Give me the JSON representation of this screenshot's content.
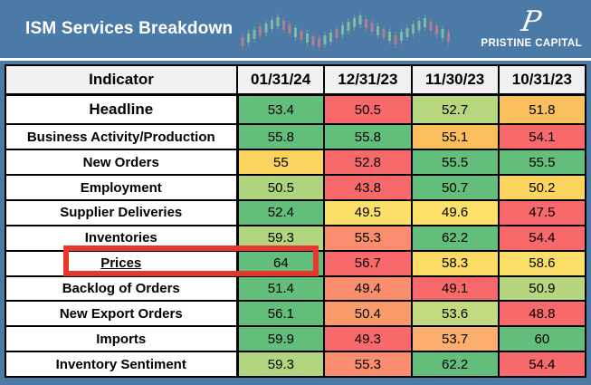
{
  "banner": {
    "title": "ISM Services Breakdown",
    "logo_monogram": "P",
    "logo_name": "PRISTINE CAPITAL",
    "background_color": "#4B7AA6",
    "candle_up_color": "#8CC7A4",
    "candle_down_color": "#C57E8D",
    "candles": [
      [
        42,
        "r"
      ],
      [
        38,
        "g"
      ],
      [
        34,
        "g"
      ],
      [
        30,
        "r"
      ],
      [
        27,
        "g"
      ],
      [
        23,
        "g"
      ],
      [
        20,
        "g"
      ],
      [
        24,
        "r"
      ],
      [
        28,
        "r"
      ],
      [
        32,
        "g"
      ],
      [
        35,
        "r"
      ],
      [
        38,
        "g"
      ],
      [
        41,
        "r"
      ],
      [
        43,
        "r"
      ],
      [
        40,
        "g"
      ],
      [
        37,
        "g"
      ],
      [
        33,
        "r"
      ],
      [
        29,
        "g"
      ],
      [
        25,
        "g"
      ],
      [
        21,
        "g"
      ],
      [
        18,
        "g"
      ],
      [
        22,
        "r"
      ],
      [
        26,
        "r"
      ],
      [
        30,
        "g"
      ],
      [
        33,
        "r"
      ],
      [
        36,
        "g"
      ],
      [
        40,
        "r"
      ],
      [
        36,
        "g"
      ],
      [
        32,
        "g"
      ],
      [
        28,
        "g"
      ],
      [
        24,
        "g"
      ],
      [
        21,
        "g"
      ],
      [
        25,
        "r"
      ],
      [
        29,
        "r"
      ],
      [
        33,
        "g"
      ],
      [
        37,
        "r"
      ]
    ]
  },
  "table": {
    "header": [
      "Indicator",
      "01/31/24",
      "12/31/23",
      "11/30/23",
      "10/31/23"
    ],
    "highlight_box_color": "#E8362D",
    "rows": [
      {
        "indicator": "Headline",
        "style": "headline",
        "values": [
          "53.4",
          "50.5",
          "52.7",
          "51.8"
        ],
        "colors": [
          "#63BE7B",
          "#F8696B",
          "#B7D77E",
          "#FBC05E"
        ]
      },
      {
        "indicator": "Business Activity/Production",
        "style": "",
        "values": [
          "55.8",
          "55.8",
          "55.1",
          "54.1"
        ],
        "colors": [
          "#63BE7B",
          "#63BE7B",
          "#FBBE5D",
          "#F8696B"
        ]
      },
      {
        "indicator": "New Orders",
        "style": "",
        "values": [
          "55",
          "52.8",
          "55.5",
          "55.5"
        ],
        "colors": [
          "#FBD35F",
          "#F8696B",
          "#63BE7B",
          "#63BE7B"
        ]
      },
      {
        "indicator": "Employment",
        "style": "",
        "values": [
          "50.5",
          "43.8",
          "50.7",
          "50.2"
        ],
        "colors": [
          "#AFD47E",
          "#F8696B",
          "#63BE7B",
          "#FBD55F"
        ]
      },
      {
        "indicator": "Supplier Deliveries",
        "style": "",
        "values": [
          "52.4",
          "49.5",
          "49.6",
          "47.5"
        ],
        "colors": [
          "#63BE7B",
          "#FBDF68",
          "#FBE169",
          "#F8696B"
        ]
      },
      {
        "indicator": "Inventories",
        "style": "",
        "values": [
          "59.3",
          "55.3",
          "62.2",
          "54.4"
        ],
        "colors": [
          "#B2D57F",
          "#FA8D6E",
          "#63BE7B",
          "#F8696B"
        ]
      },
      {
        "indicator": "Prices",
        "style": "highlighted",
        "values": [
          "64",
          "56.7",
          "58.3",
          "58.6"
        ],
        "colors": [
          "#63BE7B",
          "#F8696B",
          "#FBDB64",
          "#FBDF68"
        ]
      },
      {
        "indicator": "Backlog of Orders",
        "style": "",
        "values": [
          "51.4",
          "49.4",
          "49.1",
          "50.9"
        ],
        "colors": [
          "#63BE7B",
          "#FA8D6E",
          "#F8696B",
          "#B5D67F"
        ]
      },
      {
        "indicator": "New Export Orders",
        "style": "",
        "values": [
          "56.1",
          "50.4",
          "53.6",
          "48.8"
        ],
        "colors": [
          "#63BE7B",
          "#FA9B6C",
          "#C3DA7F",
          "#F8696B"
        ]
      },
      {
        "indicator": "Imports",
        "style": "",
        "values": [
          "59.9",
          "49.3",
          "53.7",
          "60"
        ],
        "colors": [
          "#63BE7B",
          "#F8696B",
          "#FBAE6D",
          "#63BE7B"
        ]
      },
      {
        "indicator": "Inventory Sentiment",
        "style": "",
        "values": [
          "59.3",
          "55.3",
          "62.2",
          "54.4"
        ],
        "colors": [
          "#B2D57F",
          "#FA8D6E",
          "#63BE7B",
          "#F8696B"
        ]
      }
    ]
  },
  "chart_data": {
    "type": "table",
    "title": "ISM Services Breakdown",
    "columns": [
      "01/31/24",
      "12/31/23",
      "11/30/23",
      "10/31/23"
    ],
    "rows": [
      {
        "indicator": "Headline",
        "values": [
          53.4,
          50.5,
          52.7,
          51.8
        ]
      },
      {
        "indicator": "Business Activity/Production",
        "values": [
          55.8,
          55.8,
          55.1,
          54.1
        ]
      },
      {
        "indicator": "New Orders",
        "values": [
          55,
          52.8,
          55.5,
          55.5
        ]
      },
      {
        "indicator": "Employment",
        "values": [
          50.5,
          43.8,
          50.7,
          50.2
        ]
      },
      {
        "indicator": "Supplier Deliveries",
        "values": [
          52.4,
          49.5,
          49.6,
          47.5
        ]
      },
      {
        "indicator": "Inventories",
        "values": [
          59.3,
          55.3,
          62.2,
          54.4
        ]
      },
      {
        "indicator": "Prices",
        "values": [
          64,
          56.7,
          58.3,
          58.6
        ]
      },
      {
        "indicator": "Backlog of Orders",
        "values": [
          51.4,
          49.4,
          49.1,
          50.9
        ]
      },
      {
        "indicator": "New Export Orders",
        "values": [
          56.1,
          50.4,
          53.6,
          48.8
        ]
      },
      {
        "indicator": "Imports",
        "values": [
          59.9,
          49.3,
          53.7,
          60
        ]
      },
      {
        "indicator": "Inventory Sentiment",
        "values": [
          59.3,
          55.3,
          62.2,
          54.4
        ]
      }
    ],
    "color_scale": {
      "low": "#F8696B",
      "mid": "#FFEB84",
      "high": "#63BE7B",
      "scope": "per-row"
    },
    "highlighted_cell": {
      "indicator": "Prices",
      "column": "01/31/24",
      "value": 64
    }
  }
}
